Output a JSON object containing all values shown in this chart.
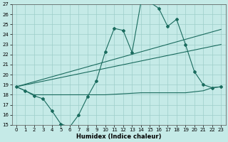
{
  "xlabel": "Humidex (Indice chaleur)",
  "bg_color": "#c5eae7",
  "line_color": "#1a6b5e",
  "xlim": [
    -0.5,
    23.5
  ],
  "ylim": [
    15,
    27
  ],
  "xticks": [
    0,
    1,
    2,
    3,
    4,
    5,
    6,
    7,
    8,
    9,
    10,
    11,
    12,
    13,
    14,
    15,
    16,
    17,
    18,
    19,
    20,
    21,
    22,
    23
  ],
  "yticks": [
    15,
    16,
    17,
    18,
    19,
    20,
    21,
    22,
    23,
    24,
    25,
    26,
    27
  ],
  "line_jagged_x": [
    0,
    1,
    2,
    3,
    4,
    5,
    6,
    7,
    8,
    9,
    10,
    11,
    12,
    13,
    14,
    15,
    16,
    17,
    18,
    19,
    20,
    21,
    22,
    23
  ],
  "line_jagged_y": [
    18.8,
    18.4,
    17.9,
    17.6,
    16.4,
    15.1,
    14.8,
    16.0,
    17.8,
    19.4,
    22.3,
    24.6,
    24.4,
    22.2,
    27.2,
    27.2,
    26.6,
    24.8,
    25.5,
    23.0,
    20.3,
    19.0,
    18.7,
    18.8
  ],
  "line_trend1_x": [
    0,
    23
  ],
  "line_trend1_y": [
    18.8,
    23.0
  ],
  "line_trend2_x": [
    0,
    23
  ],
  "line_trend2_y": [
    18.8,
    24.5
  ],
  "line_flat_x": [
    0,
    1,
    2,
    3,
    6,
    10,
    14,
    15,
    16,
    17,
    18,
    19,
    20,
    21,
    22,
    23
  ],
  "line_flat_y": [
    18.8,
    18.4,
    18.0,
    18.0,
    18.0,
    18.0,
    18.2,
    18.2,
    18.2,
    18.2,
    18.2,
    18.2,
    18.3,
    18.4,
    18.7,
    18.8
  ]
}
